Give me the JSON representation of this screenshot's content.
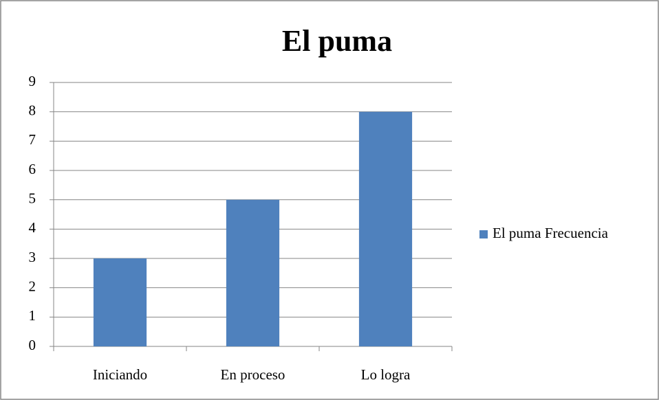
{
  "chart_data": {
    "type": "bar",
    "title": "El puma",
    "categories": [
      "Iniciando",
      "En proceso",
      "Lo logra"
    ],
    "series": [
      {
        "name": "El puma Frecuencia",
        "color": "#4f81bd",
        "values": [
          3,
          5,
          8
        ]
      }
    ],
    "ylim": [
      0,
      9
    ],
    "yticks": [
      0,
      1,
      2,
      3,
      4,
      5,
      6,
      7,
      8,
      9
    ],
    "grid": true,
    "legend": "right"
  }
}
